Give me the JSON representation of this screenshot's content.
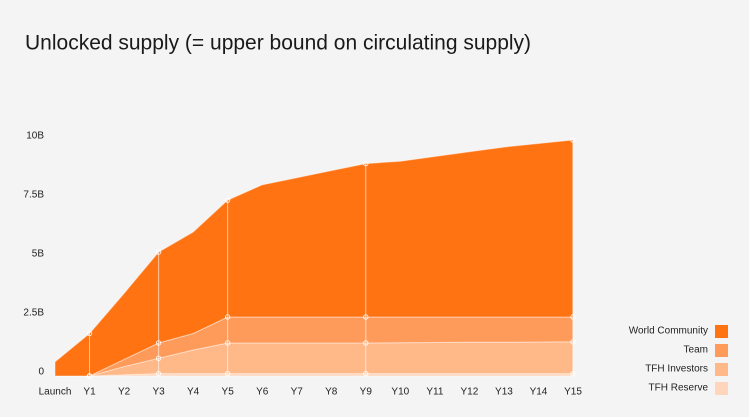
{
  "chart_data": {
    "type": "stacked_area",
    "title": "Unlocked supply (= upper bound on circulating supply)",
    "categories": [
      "Launch",
      "Y1",
      "Y2",
      "Y3",
      "Y4",
      "Y5",
      "Y6",
      "Y7",
      "Y8",
      "Y9",
      "Y10",
      "Y11",
      "Y12",
      "Y13",
      "Y14",
      "Y15"
    ],
    "series": [
      {
        "name": "TFH Reserve",
        "color": "#ffd6bb",
        "values": [
          0,
          0,
          0.05,
          0.1,
          0.1,
          0.1,
          0.1,
          0.1,
          0.1,
          0.1,
          0.1,
          0.1,
          0.1,
          0.1,
          0.1,
          0.1
        ]
      },
      {
        "name": "TFH Investors",
        "color": "#ffb888",
        "values": [
          0,
          0,
          0.35,
          0.65,
          1.0,
          1.3,
          1.3,
          1.3,
          1.3,
          1.3,
          1.31,
          1.32,
          1.33,
          1.33,
          1.34,
          1.35
        ]
      },
      {
        "name": "Team",
        "color": "#ff9b5a",
        "values": [
          0,
          0,
          0.3,
          0.65,
          0.7,
          1.1,
          1.1,
          1.1,
          1.1,
          1.1,
          1.09,
          1.08,
          1.07,
          1.07,
          1.06,
          1.05
        ]
      },
      {
        "name": "World Community",
        "color": "#ff7313",
        "values": [
          0.6,
          1.8,
          2.8,
          3.85,
          4.3,
          4.95,
          5.6,
          5.9,
          6.2,
          6.5,
          6.6,
          6.8,
          7.0,
          7.2,
          7.35,
          7.5
        ]
      }
    ],
    "ylim": [
      0,
      10
    ],
    "yticks": [
      0,
      {
        "value": 2.5,
        "label": "2.5B"
      },
      {
        "value": 5,
        "label": "5B"
      },
      {
        "value": 7.5,
        "label": "7.5B"
      },
      {
        "value": 10,
        "label": "10B"
      }
    ]
  }
}
